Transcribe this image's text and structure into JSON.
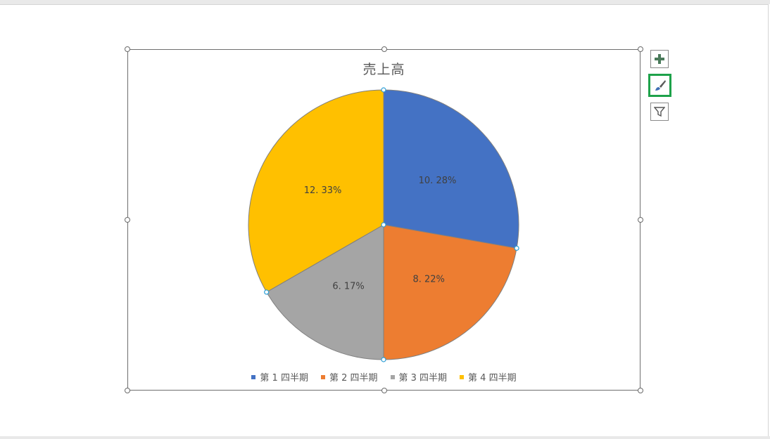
{
  "chart_data": {
    "type": "pie",
    "title": "売上高",
    "categories": [
      "第 1 四半期",
      "第 2 四半期",
      "第 3 四半期",
      "第 4 四半期"
    ],
    "values": [
      10.28,
      8.22,
      6.17,
      12.33
    ],
    "data_labels": [
      "10. 28%",
      "8. 22%",
      "6. 17%",
      "12. 33%"
    ],
    "colors": [
      "#4472c4",
      "#ed7d31",
      "#a5a5a5",
      "#ffc000"
    ],
    "legend_position": "bottom"
  },
  "side_buttons": {
    "add": "plus-icon",
    "style": "brush-icon",
    "filter": "filter-icon"
  }
}
